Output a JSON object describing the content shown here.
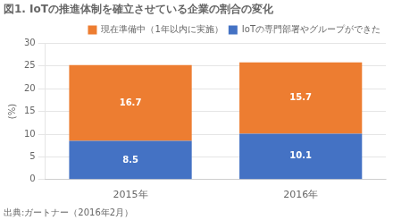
{
  "chart_data": {
    "type": "bar",
    "title": "図1. IoTの推進体制を確立させている企業の割合の変化",
    "ylabel": "(%)",
    "annotations": [
      "出典:ガートナー（2016年2月）"
    ],
    "categories": [
      "2015年",
      "2016年"
    ],
    "series": [
      {
        "name": "IoTの専門部署やグループができた",
        "color": "#4472c4",
        "values": [
          8.5,
          10.1
        ]
      },
      {
        "name": "現在準備中（1年以内に実施）",
        "color": "#ed7d31",
        "values": [
          16.7,
          15.7
        ]
      }
    ],
    "stacked": true,
    "data_labels": true,
    "ylim": [
      0,
      30
    ],
    "yticks": [
      0,
      5,
      10,
      15,
      20,
      25,
      30
    ],
    "grid": true,
    "legend": "upper right"
  }
}
